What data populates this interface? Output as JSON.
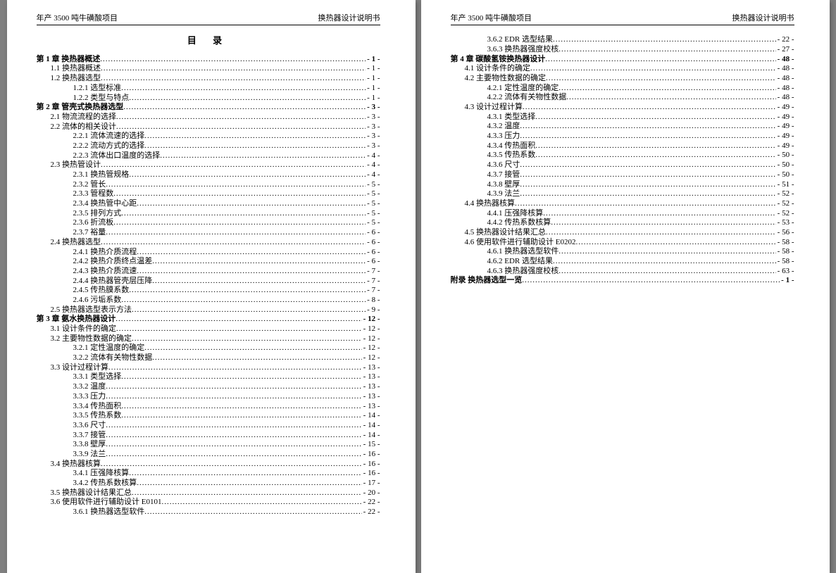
{
  "header": {
    "left": "年产 3500 吨牛磺酸项目",
    "right": "换热器设计说明书"
  },
  "toc_title": "目   录",
  "page_left": [
    {
      "level": 0,
      "bold": true,
      "label": "第 1 章  换热器概述",
      "page": "- 1 -"
    },
    {
      "level": 1,
      "label": "1.1 换热器概述",
      "page": "- 1 -"
    },
    {
      "level": 1,
      "label": "1.2 换热器选型",
      "page": "- 1 -"
    },
    {
      "level": 2,
      "label": "1.2.1 选型标准",
      "page": "- 1 -"
    },
    {
      "level": 2,
      "label": "1.2.2 类型与特点",
      "page": "- 1 -"
    },
    {
      "level": 0,
      "bold": true,
      "label": "第 2 章  管壳式换热器选型",
      "page": "- 3 -"
    },
    {
      "level": 1,
      "label": "2.1 物流流程的选择",
      "page": "- 3 -"
    },
    {
      "level": 1,
      "label": "2.2 流体的相关设计",
      "page": "- 3 -"
    },
    {
      "level": 2,
      "label": "2.2.1 流体流速的选择",
      "page": "- 3 -"
    },
    {
      "level": 2,
      "label": "2.2.2 流动方式的选择",
      "page": "- 3 -"
    },
    {
      "level": 2,
      "label": "2.2.3 流体出口温度的选择",
      "page": "- 4 -"
    },
    {
      "level": 1,
      "label": "2.3 换热管设计",
      "page": "- 4 -"
    },
    {
      "level": 2,
      "label": "2.3.1 换热管规格",
      "page": "- 4 -"
    },
    {
      "level": 2,
      "label": "2.3.2 管长",
      "page": "- 5 -"
    },
    {
      "level": 2,
      "label": "2.3.3 管程数",
      "page": "- 5 -"
    },
    {
      "level": 2,
      "label": "2.3.4 换热管中心距",
      "page": "- 5 -"
    },
    {
      "level": 2,
      "label": "2.3.5 排列方式",
      "page": "- 5 -"
    },
    {
      "level": 2,
      "label": "2.3.6 折流板",
      "page": "- 5 -"
    },
    {
      "level": 2,
      "label": "2.3.7 裕量",
      "page": "- 6 -"
    },
    {
      "level": 1,
      "label": "2.4 换热器选型",
      "page": "- 6 -"
    },
    {
      "level": 2,
      "label": "2.4.1 换热介质流程",
      "page": "- 6 -"
    },
    {
      "level": 2,
      "label": "2.4.2 换热介质终点温差",
      "page": "- 6 -"
    },
    {
      "level": 2,
      "label": "2.4.3 换热介质流速",
      "page": "- 7 -"
    },
    {
      "level": 2,
      "label": "2.4.4 换热器管壳层压降",
      "page": "- 7 -"
    },
    {
      "level": 2,
      "label": "2.4.5 传热膜系数",
      "page": "- 7 -"
    },
    {
      "level": 2,
      "label": "2.4.6 污垢系数",
      "page": "- 8 -"
    },
    {
      "level": 1,
      "label": "2.5 换热器选型表示方法",
      "page": "- 9 -"
    },
    {
      "level": 0,
      "bold": true,
      "label": "第 3 章  氨水换热器设计",
      "page": "- 12 -"
    },
    {
      "level": 1,
      "label": "3.1 设计条件的确定",
      "page": "- 12 -"
    },
    {
      "level": 1,
      "label": "3.2 主要物性数据的确定",
      "page": "- 12 -"
    },
    {
      "level": 2,
      "label": "3.2.1 定性温度的确定",
      "page": "- 12 -"
    },
    {
      "level": 2,
      "label": "3.2.2 流体有关物性数据",
      "page": "- 12 -"
    },
    {
      "level": 1,
      "label": "3.3 设计过程计算",
      "page": "- 13 -"
    },
    {
      "level": 2,
      "label": "3.3.1 类型选择",
      "page": "- 13 -"
    },
    {
      "level": 2,
      "label": "3.3.2 温度",
      "page": "- 13 -"
    },
    {
      "level": 2,
      "label": "3.3.3 压力",
      "page": "- 13 -"
    },
    {
      "level": 2,
      "label": "3.3.4 传热面积",
      "page": "- 13 -"
    },
    {
      "level": 2,
      "label": "3.3.5 传热系数",
      "page": "- 14 -"
    },
    {
      "level": 2,
      "label": "3.3.6 尺寸",
      "page": "- 14 -"
    },
    {
      "level": 2,
      "label": "3.3.7 接管",
      "page": "- 14 -"
    },
    {
      "level": 2,
      "label": "3.3.8 壁厚",
      "page": "- 15 -"
    },
    {
      "level": 2,
      "label": "3.3.9 法兰",
      "page": "- 16 -"
    },
    {
      "level": 1,
      "label": "3.4 换热器核算",
      "page": "- 16 -"
    },
    {
      "level": 2,
      "label": "3.4.1 压强降核算",
      "page": "- 16 -"
    },
    {
      "level": 2,
      "label": "3.4.2 传热系数核算",
      "page": "- 17 -"
    },
    {
      "level": 1,
      "label": "3.5 换热器设计结果汇总",
      "page": "- 20 -"
    },
    {
      "level": 1,
      "label": "3.6 使用软件进行辅助设计 E0101",
      "page": "- 22 -"
    },
    {
      "level": 2,
      "label": "3.6.1 换热器选型软件",
      "page": "- 22 -"
    }
  ],
  "page_right": [
    {
      "level": 2,
      "label": "3.6.2 EDR 选型结果",
      "page": "- 22 -"
    },
    {
      "level": 2,
      "label": "3.6.3 换热器强度校核",
      "page": "- 27 -"
    },
    {
      "level": 0,
      "bold": true,
      "label": "第 4 章  碳酸氢铵换热器设计",
      "page": "- 48 -"
    },
    {
      "level": 1,
      "label": "4.1 设计条件的确定",
      "page": "- 48 -"
    },
    {
      "level": 1,
      "label": "4.2 主要物性数据的确定",
      "page": "- 48 -"
    },
    {
      "level": 2,
      "label": "4.2.1 定性温度的确定",
      "page": "- 48 -"
    },
    {
      "level": 2,
      "label": "4.2.2 流体有关物性数据",
      "page": "- 48 -"
    },
    {
      "level": 1,
      "label": "4.3 设计过程计算",
      "page": "- 49 -"
    },
    {
      "level": 2,
      "label": "4.3.1 类型选择",
      "page": "- 49 -"
    },
    {
      "level": 2,
      "label": "4.3.2 温度",
      "page": "- 49 -"
    },
    {
      "level": 2,
      "label": "4.3.3 压力",
      "page": "- 49 -"
    },
    {
      "level": 2,
      "label": "4.3.4 传热面积",
      "page": "- 49 -"
    },
    {
      "level": 2,
      "label": "4.3.5 传热系数",
      "page": "- 50 -"
    },
    {
      "level": 2,
      "label": "4.3.6 尺寸",
      "page": "- 50 -"
    },
    {
      "level": 2,
      "label": "4.3.7 接管",
      "page": "- 50 -"
    },
    {
      "level": 2,
      "label": "4.3.8 壁厚",
      "page": "- 51 -"
    },
    {
      "level": 2,
      "label": "4.3.9 法兰",
      "page": "- 52 -"
    },
    {
      "level": 1,
      "label": "4.4 换热器核算",
      "page": "- 52 -"
    },
    {
      "level": 2,
      "label": "4.4.1 压强降核算",
      "page": "- 52 -"
    },
    {
      "level": 2,
      "label": "4.4.2 传热系数核算",
      "page": "- 53 -"
    },
    {
      "level": 1,
      "label": "4.5 换热器设计结果汇总",
      "page": "- 56 -"
    },
    {
      "level": 1,
      "label": "4.6 使用软件进行辅助设计 E0202",
      "page": "- 58 -"
    },
    {
      "level": 2,
      "label": "4.6.1 换热器选型软件",
      "page": "- 58 -"
    },
    {
      "level": 2,
      "label": "4.6.2 EDR 选型结果",
      "page": "- 58 -"
    },
    {
      "level": 2,
      "label": "4.6.3 换热器强度校核",
      "page": "- 63 -"
    },
    {
      "level": 0,
      "bold": false,
      "label": "附录    换热器选型一览",
      "page": "- 1 -"
    }
  ]
}
